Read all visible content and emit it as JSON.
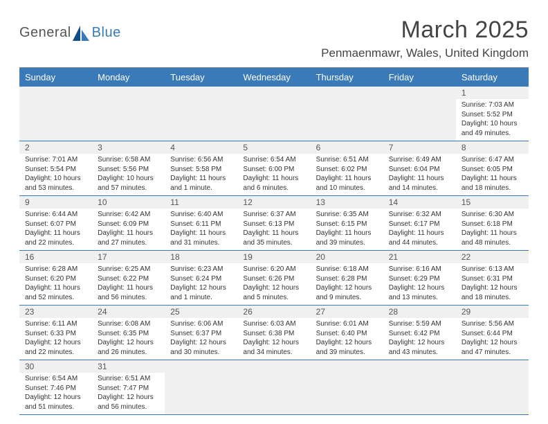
{
  "logo": {
    "general": "General",
    "blue": "Blue"
  },
  "title": "March 2025",
  "location": "Penmaenmawr, Wales, United Kingdom",
  "weekdays": [
    "Sunday",
    "Monday",
    "Tuesday",
    "Wednesday",
    "Thursday",
    "Friday",
    "Saturday"
  ],
  "colors": {
    "header_bg": "#3a7ab8",
    "header_text": "#ffffff",
    "daynum_bg": "#f0f0f0",
    "text": "#333333",
    "divider": "#888888"
  },
  "weeks": [
    [
      null,
      null,
      null,
      null,
      null,
      null,
      {
        "n": "1",
        "sunrise": "Sunrise: 7:03 AM",
        "sunset": "Sunset: 5:52 PM",
        "daylight": "Daylight: 10 hours and 49 minutes."
      }
    ],
    [
      {
        "n": "2",
        "sunrise": "Sunrise: 7:01 AM",
        "sunset": "Sunset: 5:54 PM",
        "daylight": "Daylight: 10 hours and 53 minutes."
      },
      {
        "n": "3",
        "sunrise": "Sunrise: 6:58 AM",
        "sunset": "Sunset: 5:56 PM",
        "daylight": "Daylight: 10 hours and 57 minutes."
      },
      {
        "n": "4",
        "sunrise": "Sunrise: 6:56 AM",
        "sunset": "Sunset: 5:58 PM",
        "daylight": "Daylight: 11 hours and 1 minute."
      },
      {
        "n": "5",
        "sunrise": "Sunrise: 6:54 AM",
        "sunset": "Sunset: 6:00 PM",
        "daylight": "Daylight: 11 hours and 6 minutes."
      },
      {
        "n": "6",
        "sunrise": "Sunrise: 6:51 AM",
        "sunset": "Sunset: 6:02 PM",
        "daylight": "Daylight: 11 hours and 10 minutes."
      },
      {
        "n": "7",
        "sunrise": "Sunrise: 6:49 AM",
        "sunset": "Sunset: 6:04 PM",
        "daylight": "Daylight: 11 hours and 14 minutes."
      },
      {
        "n": "8",
        "sunrise": "Sunrise: 6:47 AM",
        "sunset": "Sunset: 6:05 PM",
        "daylight": "Daylight: 11 hours and 18 minutes."
      }
    ],
    [
      {
        "n": "9",
        "sunrise": "Sunrise: 6:44 AM",
        "sunset": "Sunset: 6:07 PM",
        "daylight": "Daylight: 11 hours and 22 minutes."
      },
      {
        "n": "10",
        "sunrise": "Sunrise: 6:42 AM",
        "sunset": "Sunset: 6:09 PM",
        "daylight": "Daylight: 11 hours and 27 minutes."
      },
      {
        "n": "11",
        "sunrise": "Sunrise: 6:40 AM",
        "sunset": "Sunset: 6:11 PM",
        "daylight": "Daylight: 11 hours and 31 minutes."
      },
      {
        "n": "12",
        "sunrise": "Sunrise: 6:37 AM",
        "sunset": "Sunset: 6:13 PM",
        "daylight": "Daylight: 11 hours and 35 minutes."
      },
      {
        "n": "13",
        "sunrise": "Sunrise: 6:35 AM",
        "sunset": "Sunset: 6:15 PM",
        "daylight": "Daylight: 11 hours and 39 minutes."
      },
      {
        "n": "14",
        "sunrise": "Sunrise: 6:32 AM",
        "sunset": "Sunset: 6:17 PM",
        "daylight": "Daylight: 11 hours and 44 minutes."
      },
      {
        "n": "15",
        "sunrise": "Sunrise: 6:30 AM",
        "sunset": "Sunset: 6:18 PM",
        "daylight": "Daylight: 11 hours and 48 minutes."
      }
    ],
    [
      {
        "n": "16",
        "sunrise": "Sunrise: 6:28 AM",
        "sunset": "Sunset: 6:20 PM",
        "daylight": "Daylight: 11 hours and 52 minutes."
      },
      {
        "n": "17",
        "sunrise": "Sunrise: 6:25 AM",
        "sunset": "Sunset: 6:22 PM",
        "daylight": "Daylight: 11 hours and 56 minutes."
      },
      {
        "n": "18",
        "sunrise": "Sunrise: 6:23 AM",
        "sunset": "Sunset: 6:24 PM",
        "daylight": "Daylight: 12 hours and 1 minute."
      },
      {
        "n": "19",
        "sunrise": "Sunrise: 6:20 AM",
        "sunset": "Sunset: 6:26 PM",
        "daylight": "Daylight: 12 hours and 5 minutes."
      },
      {
        "n": "20",
        "sunrise": "Sunrise: 6:18 AM",
        "sunset": "Sunset: 6:28 PM",
        "daylight": "Daylight: 12 hours and 9 minutes."
      },
      {
        "n": "21",
        "sunrise": "Sunrise: 6:16 AM",
        "sunset": "Sunset: 6:29 PM",
        "daylight": "Daylight: 12 hours and 13 minutes."
      },
      {
        "n": "22",
        "sunrise": "Sunrise: 6:13 AM",
        "sunset": "Sunset: 6:31 PM",
        "daylight": "Daylight: 12 hours and 18 minutes."
      }
    ],
    [
      {
        "n": "23",
        "sunrise": "Sunrise: 6:11 AM",
        "sunset": "Sunset: 6:33 PM",
        "daylight": "Daylight: 12 hours and 22 minutes."
      },
      {
        "n": "24",
        "sunrise": "Sunrise: 6:08 AM",
        "sunset": "Sunset: 6:35 PM",
        "daylight": "Daylight: 12 hours and 26 minutes."
      },
      {
        "n": "25",
        "sunrise": "Sunrise: 6:06 AM",
        "sunset": "Sunset: 6:37 PM",
        "daylight": "Daylight: 12 hours and 30 minutes."
      },
      {
        "n": "26",
        "sunrise": "Sunrise: 6:03 AM",
        "sunset": "Sunset: 6:38 PM",
        "daylight": "Daylight: 12 hours and 34 minutes."
      },
      {
        "n": "27",
        "sunrise": "Sunrise: 6:01 AM",
        "sunset": "Sunset: 6:40 PM",
        "daylight": "Daylight: 12 hours and 39 minutes."
      },
      {
        "n": "28",
        "sunrise": "Sunrise: 5:59 AM",
        "sunset": "Sunset: 6:42 PM",
        "daylight": "Daylight: 12 hours and 43 minutes."
      },
      {
        "n": "29",
        "sunrise": "Sunrise: 5:56 AM",
        "sunset": "Sunset: 6:44 PM",
        "daylight": "Daylight: 12 hours and 47 minutes."
      }
    ],
    [
      {
        "n": "30",
        "sunrise": "Sunrise: 6:54 AM",
        "sunset": "Sunset: 7:46 PM",
        "daylight": "Daylight: 12 hours and 51 minutes."
      },
      {
        "n": "31",
        "sunrise": "Sunrise: 6:51 AM",
        "sunset": "Sunset: 7:47 PM",
        "daylight": "Daylight: 12 hours and 56 minutes."
      },
      null,
      null,
      null,
      null,
      null
    ]
  ]
}
